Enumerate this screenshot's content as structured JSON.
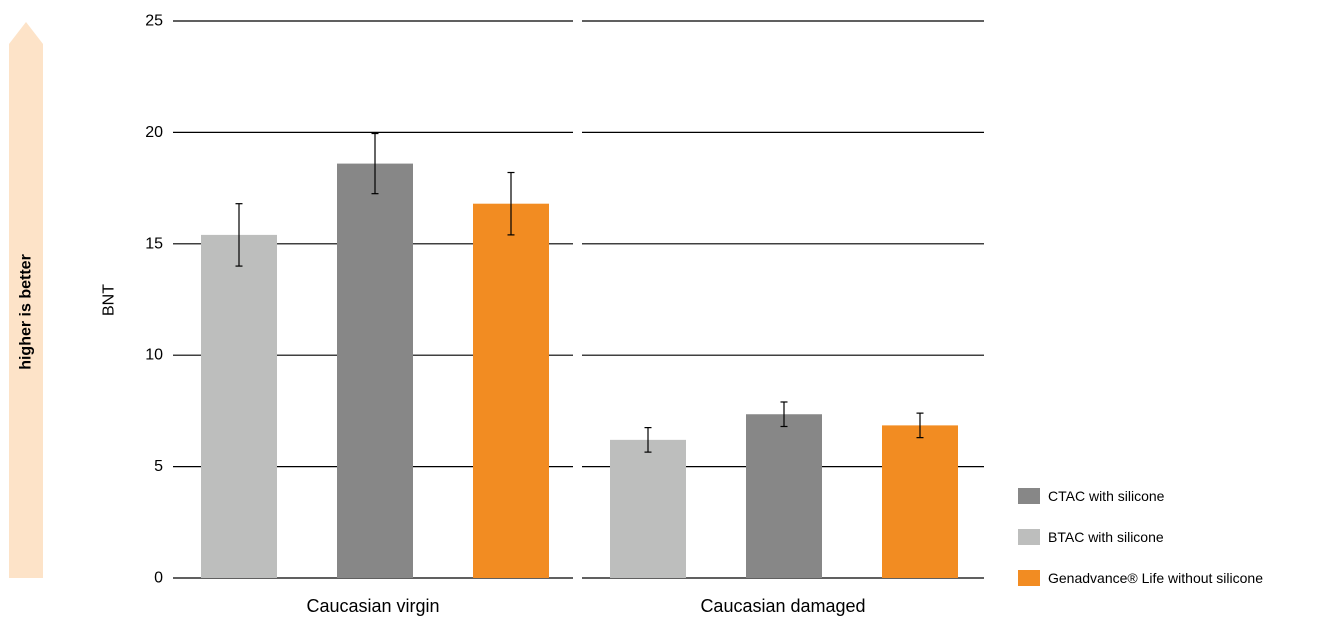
{
  "side_arrow": {
    "label": "higher is better",
    "color": "#FDE3C8"
  },
  "chart_data": {
    "type": "bar",
    "ylabel": "BNT",
    "ylim": [
      0,
      25
    ],
    "yticks": [
      0,
      5,
      10,
      15,
      20,
      25
    ],
    "grid": true,
    "legend_position": "bottom-right",
    "categories": [
      "Caucasian virgin",
      "Caucasian damaged"
    ],
    "series": [
      {
        "name": "BTAC with silicone",
        "color": "#BDBEBD",
        "values": [
          15.4,
          6.2
        ],
        "errors": [
          1.4,
          0.55
        ]
      },
      {
        "name": "CTAC with silicone",
        "color": "#878787",
        "values": [
          18.6,
          7.35
        ],
        "errors": [
          1.35,
          0.55
        ]
      },
      {
        "name": "Genadvance® Life without silicone",
        "color": "#F28C22",
        "values": [
          16.8,
          6.85
        ],
        "errors": [
          1.4,
          0.55
        ]
      }
    ],
    "legend_order": [
      "CTAC with silicone",
      "BTAC with silicone",
      "Genadvance® Life without silicone"
    ]
  }
}
